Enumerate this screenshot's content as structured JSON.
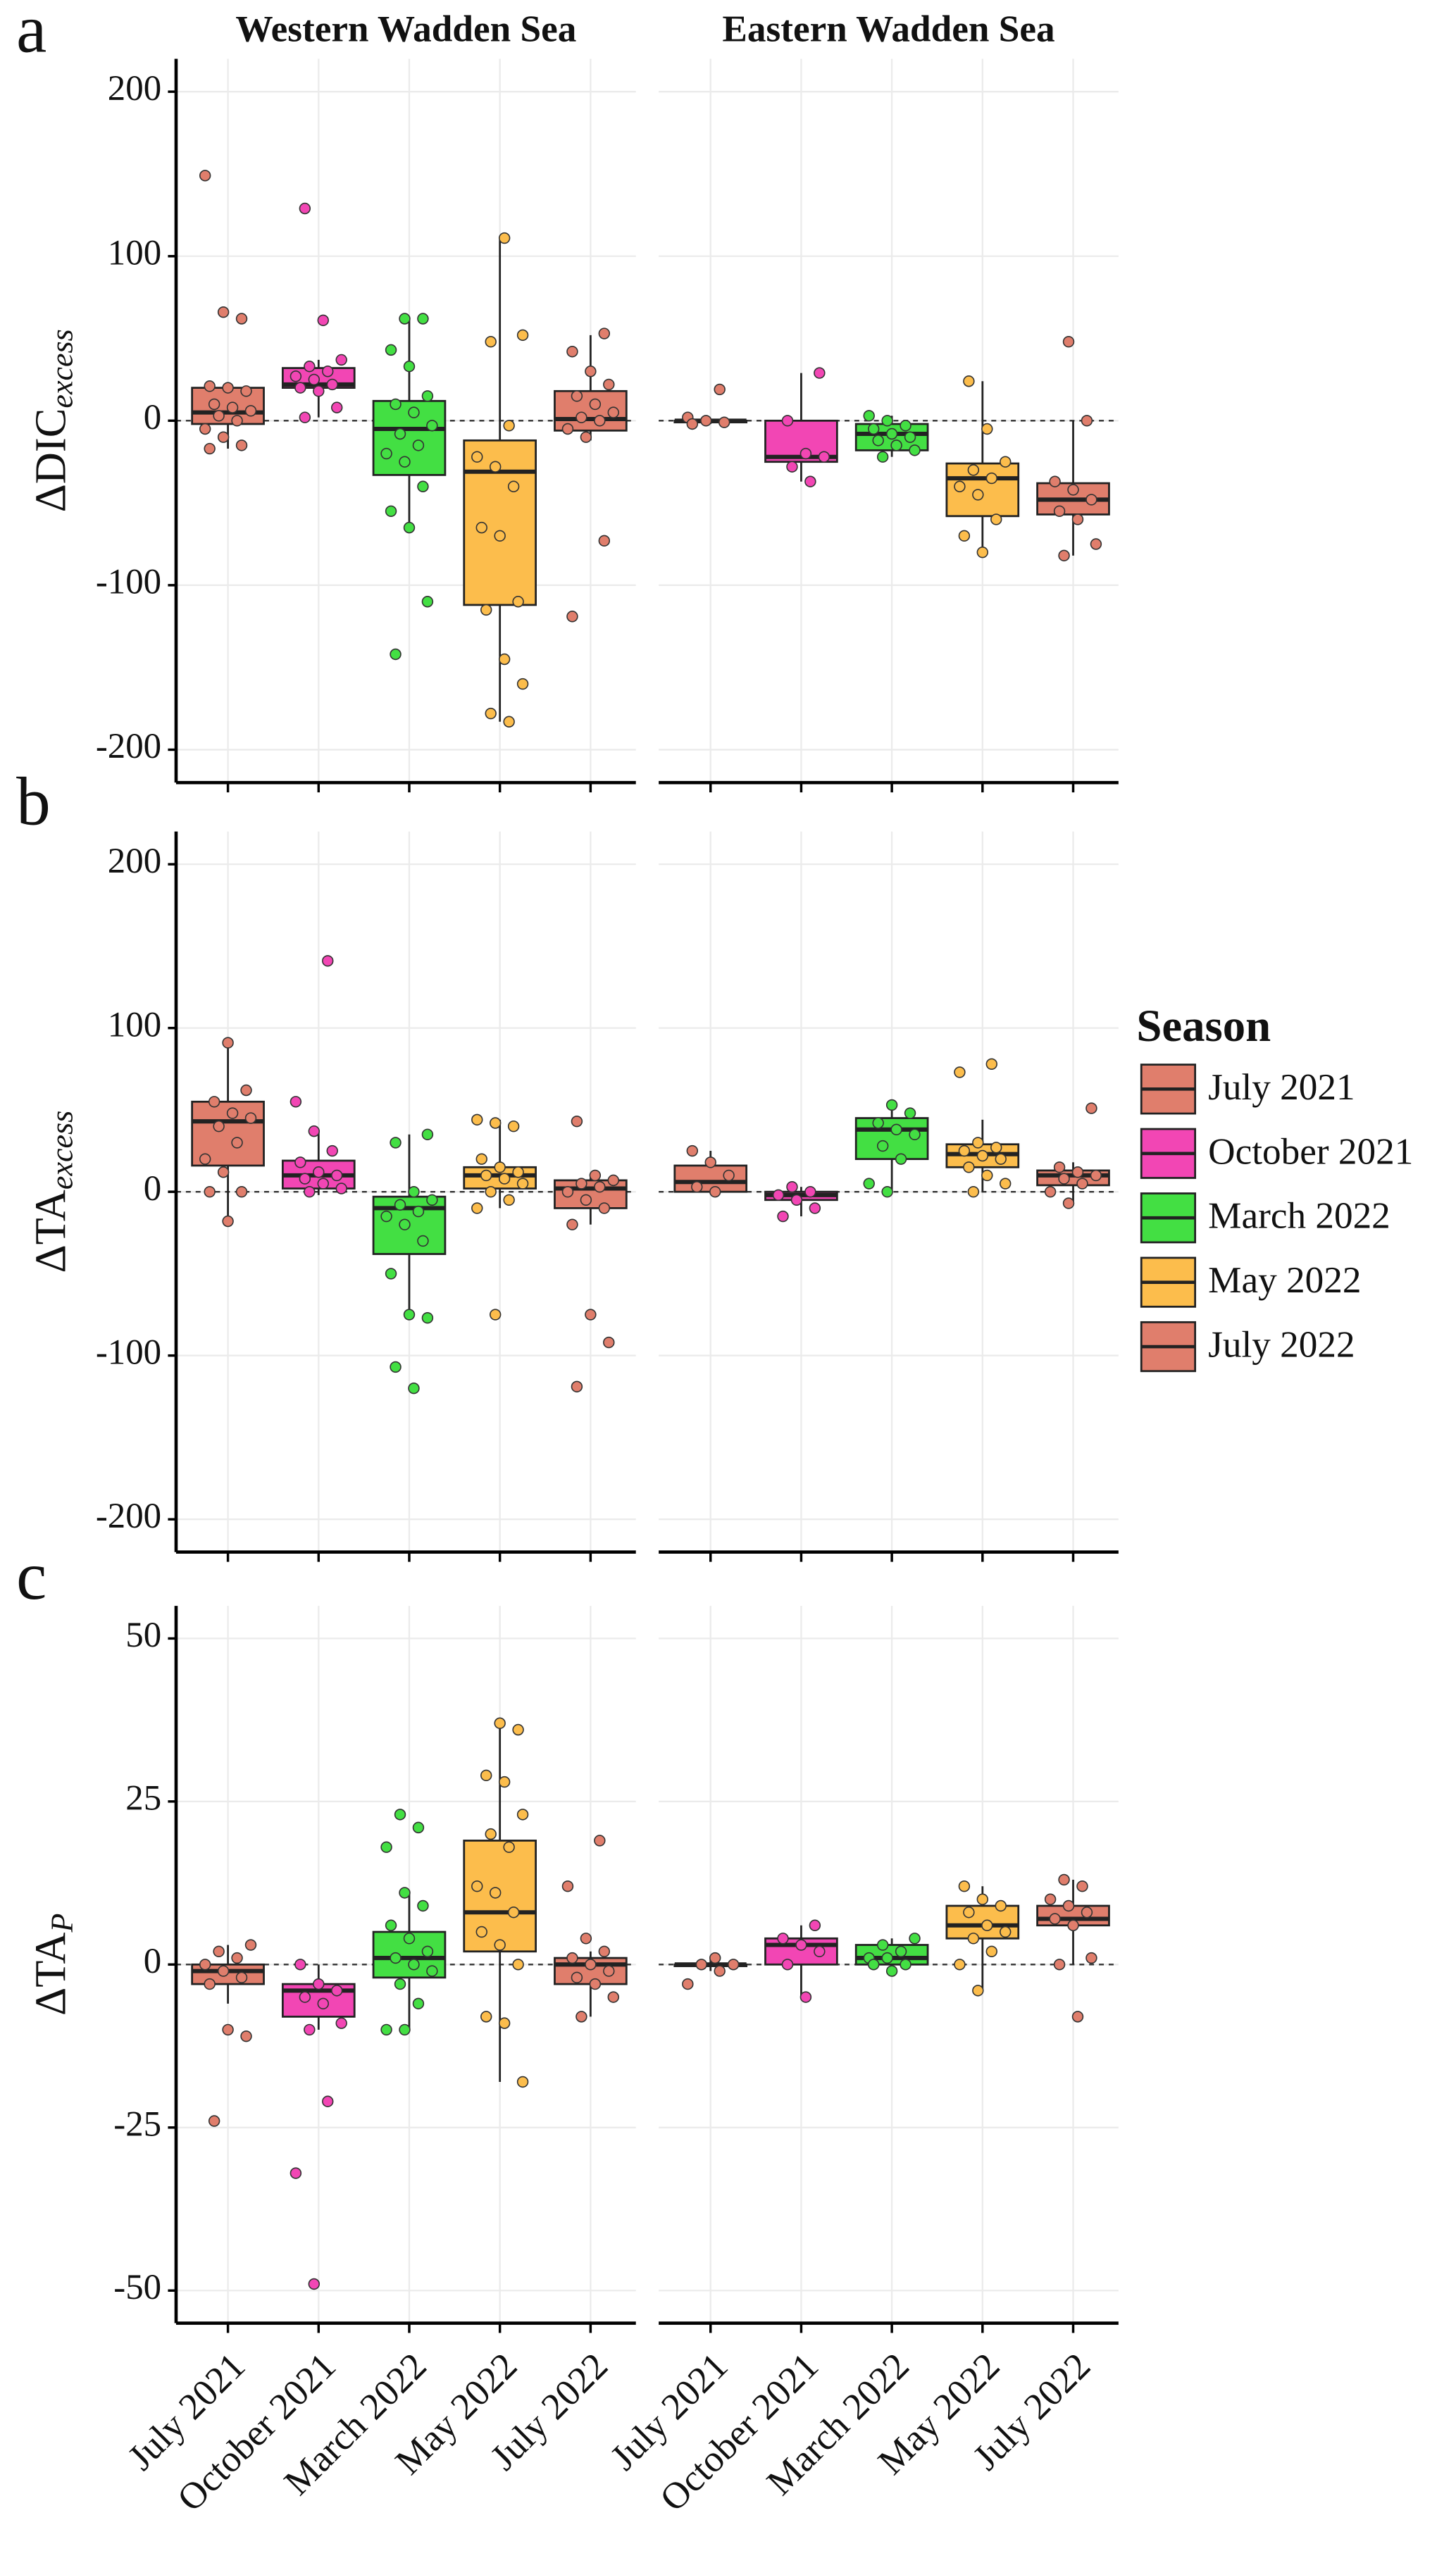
{
  "chart_data": [
    {
      "type": "box",
      "label": "a",
      "ylabel": "ΔDIC",
      "ylabel_sub": "excess",
      "facets": [
        "Western Wadden Sea",
        "Eastern Wadden Sea"
      ],
      "ylim": [
        -220,
        220
      ],
      "yticks": [
        -200,
        -100,
        0,
        100,
        200
      ],
      "grid": true,
      "colors": [
        "#e07e6c",
        "#f246b4",
        "#43df43",
        "#fcbd4c",
        "#e07e6c"
      ],
      "groups": [
        [
          {
            "whisker_low": -17,
            "q1": -2,
            "median": 5,
            "q3": 20,
            "whisker_high": 21,
            "points": [
              149,
              66,
              62,
              21,
              20,
              18,
              10,
              8,
              6,
              3,
              0,
              -5,
              -10,
              -15,
              -17
            ]
          },
          {
            "whisker_low": 2,
            "q1": 20,
            "median": 22,
            "q3": 32,
            "whisker_high": 37,
            "points": [
              129,
              61,
              37,
              33,
              30,
              27,
              25,
              22,
              20,
              18,
              8,
              2
            ]
          },
          {
            "whisker_low": -66,
            "q1": -33,
            "median": -5,
            "q3": 12,
            "whisker_high": 62,
            "points": [
              62,
              62,
              43,
              33,
              15,
              10,
              5,
              -3,
              -8,
              -15,
              -20,
              -25,
              -40,
              -55,
              -65,
              -110,
              -142
            ]
          },
          {
            "whisker_low": -183,
            "q1": -112,
            "median": -31,
            "q3": -12,
            "whisker_high": 110,
            "points": [
              111,
              52,
              48,
              -3,
              -22,
              -28,
              -40,
              -65,
              -70,
              -110,
              -115,
              -145,
              -160,
              -178,
              -183
            ]
          },
          {
            "whisker_low": -12,
            "q1": -6,
            "median": 1,
            "q3": 18,
            "whisker_high": 52,
            "points": [
              53,
              42,
              30,
              22,
              15,
              10,
              5,
              2,
              0,
              -5,
              -10,
              -73,
              -119
            ]
          }
        ],
        [
          {
            "whisker_low": -2,
            "q1": -1,
            "median": 0,
            "q3": 0,
            "whisker_high": 1,
            "points": [
              19,
              2,
              0,
              -1,
              -2
            ]
          },
          {
            "whisker_low": -37,
            "q1": -25,
            "median": -22,
            "q3": 0,
            "whisker_high": 29,
            "points": [
              29,
              0,
              -20,
              -22,
              -28,
              -37
            ]
          },
          {
            "whisker_low": -22,
            "q1": -18,
            "median": -8,
            "q3": -2,
            "whisker_high": 3,
            "points": [
              3,
              0,
              -3,
              -5,
              -8,
              -10,
              -12,
              -15,
              -18,
              -22
            ]
          },
          {
            "whisker_low": -80,
            "q1": -58,
            "median": -35,
            "q3": -26,
            "whisker_high": 24,
            "points": [
              24,
              -5,
              -25,
              -30,
              -35,
              -40,
              -45,
              -60,
              -70,
              -80
            ]
          },
          {
            "whisker_low": -82,
            "q1": -57,
            "median": -48,
            "q3": -38,
            "whisker_high": 0,
            "points": [
              48,
              0,
              -37,
              -42,
              -48,
              -55,
              -60,
              -75,
              -82
            ]
          }
        ]
      ]
    },
    {
      "type": "box",
      "label": "b",
      "ylabel": "ΔTA",
      "ylabel_sub": "excess",
      "ylim": [
        -220,
        220
      ],
      "yticks": [
        -200,
        -100,
        0,
        100,
        200
      ],
      "grid": true,
      "colors": [
        "#e07e6c",
        "#f246b4",
        "#43df43",
        "#fcbd4c",
        "#e07e6c"
      ],
      "legend": {
        "title": "Season",
        "position": "right",
        "entries": [
          "July 2021",
          "October 2021",
          "March 2022",
          "May 2022",
          "July 2022"
        ]
      },
      "groups": [
        [
          {
            "whisker_low": -18,
            "q1": 16,
            "median": 43,
            "q3": 55,
            "whisker_high": 91,
            "points": [
              91,
              62,
              55,
              48,
              45,
              40,
              30,
              20,
              12,
              0,
              0,
              -18
            ]
          },
          {
            "whisker_low": -2,
            "q1": 2,
            "median": 10,
            "q3": 19,
            "whisker_high": 37,
            "points": [
              141,
              55,
              37,
              25,
              18,
              12,
              10,
              8,
              5,
              2,
              0
            ]
          },
          {
            "whisker_low": -76,
            "q1": -38,
            "median": -10,
            "q3": -3,
            "whisker_high": 35,
            "points": [
              35,
              30,
              0,
              -5,
              -8,
              -12,
              -15,
              -20,
              -30,
              -50,
              -75,
              -77,
              -107,
              -120
            ]
          },
          {
            "whisker_low": -10,
            "q1": 2,
            "median": 10,
            "q3": 15,
            "whisker_high": 44,
            "points": [
              44,
              42,
              40,
              20,
              15,
              12,
              10,
              8,
              5,
              0,
              -5,
              -10,
              -75
            ]
          },
          {
            "whisker_low": -20,
            "q1": -10,
            "median": 2,
            "q3": 7,
            "whisker_high": 10,
            "points": [
              43,
              10,
              7,
              5,
              3,
              0,
              -5,
              -10,
              -20,
              -75,
              -92,
              -119
            ]
          }
        ],
        [
          {
            "whisker_low": 0,
            "q1": 0,
            "median": 6,
            "q3": 16,
            "whisker_high": 25,
            "points": [
              25,
              18,
              10,
              3,
              0
            ]
          },
          {
            "whisker_low": -15,
            "q1": -5,
            "median": -2,
            "q3": 0,
            "whisker_high": 3,
            "points": [
              3,
              0,
              -2,
              -5,
              -10,
              -15
            ]
          },
          {
            "whisker_low": 0,
            "q1": 20,
            "median": 38,
            "q3": 45,
            "whisker_high": 53,
            "points": [
              53,
              48,
              42,
              38,
              35,
              28,
              20,
              5,
              0
            ]
          },
          {
            "whisker_low": 0,
            "q1": 15,
            "median": 23,
            "q3": 29,
            "whisker_high": 44,
            "points": [
              78,
              73,
              30,
              27,
              25,
              22,
              20,
              15,
              10,
              5,
              0
            ]
          },
          {
            "whisker_low": -7,
            "q1": 4,
            "median": 10,
            "q3": 13,
            "whisker_high": 18,
            "points": [
              51,
              15,
              12,
              10,
              8,
              5,
              0,
              -7
            ]
          }
        ]
      ]
    },
    {
      "type": "box",
      "label": "c",
      "ylabel": "ΔTA",
      "ylabel_sub": "P",
      "ylim": [
        -55,
        55
      ],
      "yticks": [
        -50,
        -25,
        0,
        25,
        50
      ],
      "grid": true,
      "colors": [
        "#e07e6c",
        "#f246b4",
        "#43df43",
        "#fcbd4c",
        "#e07e6c"
      ],
      "categories": [
        "July 2021",
        "October 2021",
        "March 2022",
        "May 2022",
        "July 2022"
      ],
      "groups": [
        [
          {
            "whisker_low": -6,
            "q1": -3,
            "median": -1,
            "q3": 0,
            "whisker_high": 3,
            "points": [
              3,
              2,
              1,
              0,
              -1,
              -2,
              -3,
              -10,
              -11,
              -24
            ]
          },
          {
            "whisker_low": -10,
            "q1": -8,
            "median": -4,
            "q3": -3,
            "whisker_high": 0,
            "points": [
              0,
              -3,
              -4,
              -5,
              -6,
              -9,
              -10,
              -21,
              -32,
              -49
            ]
          },
          {
            "whisker_low": -10,
            "q1": -2,
            "median": 1,
            "q3": 5,
            "whisker_high": 11,
            "points": [
              23,
              21,
              18,
              11,
              9,
              6,
              4,
              2,
              1,
              0,
              -1,
              -3,
              -6,
              -10,
              -10
            ]
          },
          {
            "whisker_low": -18,
            "q1": 2,
            "median": 8,
            "q3": 19,
            "whisker_high": 37,
            "points": [
              37,
              36,
              29,
              28,
              23,
              20,
              18,
              12,
              11,
              8,
              5,
              3,
              0,
              -8,
              -9,
              -18
            ]
          },
          {
            "whisker_low": -8,
            "q1": -3,
            "median": 0,
            "q3": 1,
            "whisker_high": 2,
            "points": [
              19,
              12,
              4,
              2,
              1,
              0,
              -1,
              -2,
              -3,
              -5,
              -8
            ]
          }
        ],
        [
          {
            "whisker_low": -1,
            "q1": 0,
            "median": 0,
            "q3": 0,
            "whisker_high": 1,
            "points": [
              1,
              0,
              0,
              -1,
              -3
            ]
          },
          {
            "whisker_low": -5,
            "q1": 0,
            "median": 3,
            "q3": 4,
            "whisker_high": 6,
            "points": [
              6,
              4,
              3,
              2,
              0,
              -5
            ]
          },
          {
            "whisker_low": -1,
            "q1": 0,
            "median": 1,
            "q3": 3,
            "whisker_high": 4,
            "points": [
              4,
              3,
              2,
              1,
              1,
              0,
              0,
              -1
            ]
          },
          {
            "whisker_low": -4,
            "q1": 4,
            "median": 6,
            "q3": 9,
            "whisker_high": 12,
            "points": [
              12,
              10,
              9,
              8,
              6,
              5,
              4,
              2,
              0,
              -4
            ]
          },
          {
            "whisker_low": 0,
            "q1": 6,
            "median": 7,
            "q3": 9,
            "whisker_high": 13,
            "points": [
              13,
              12,
              10,
              9,
              8,
              7,
              6,
              1,
              0,
              -8
            ]
          }
        ]
      ]
    }
  ]
}
